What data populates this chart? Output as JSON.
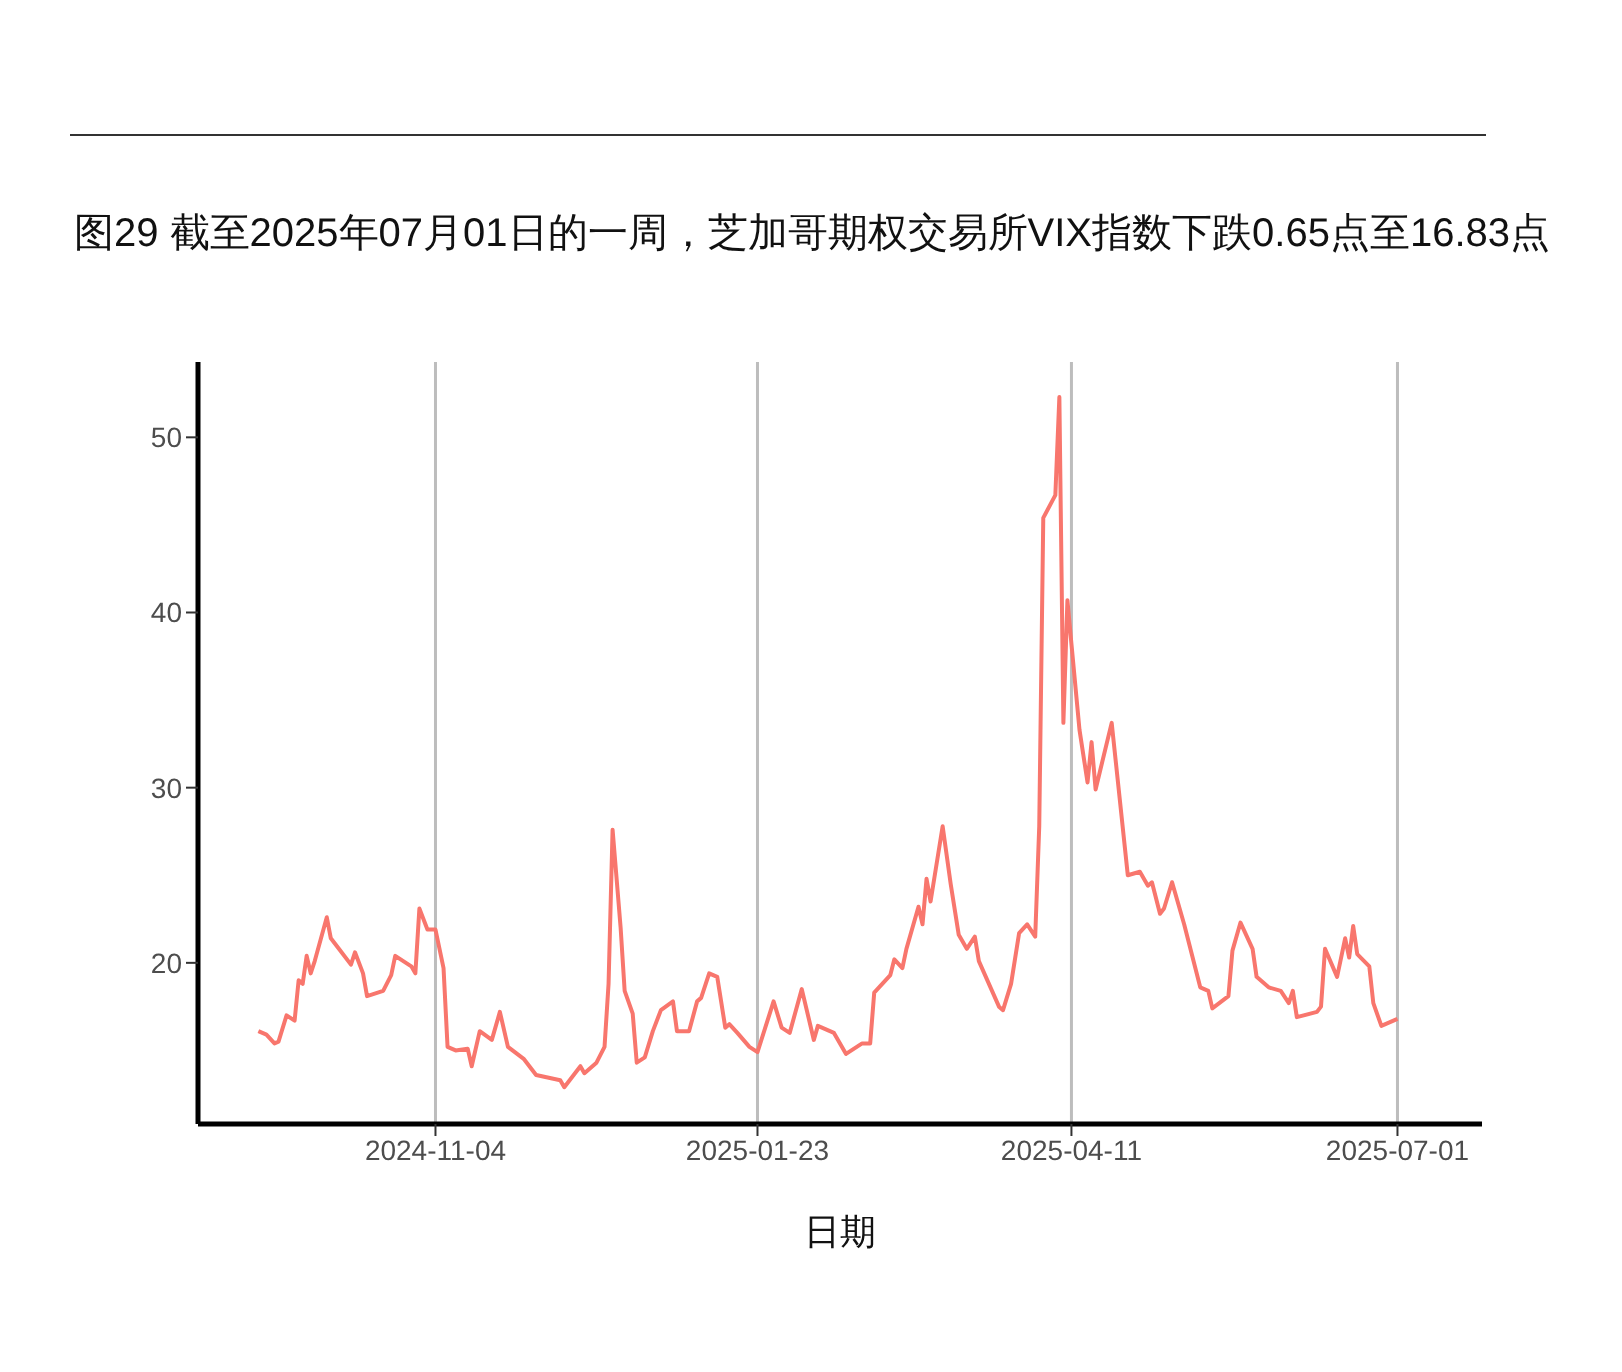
{
  "chart_data": {
    "type": "line",
    "title": "图29  截至2025年07月01日的一周，芝加哥期权交易所VIX指数下跌0.65点至16.83点",
    "xlabel": "日期",
    "x": [
      "2024-09-21",
      "2024-09-23",
      "2024-09-25",
      "2024-09-26",
      "2024-09-28",
      "2024-09-30",
      "2024-10-01",
      "2024-10-02",
      "2024-10-03",
      "2024-10-04",
      "2024-10-05",
      "2024-10-08",
      "2024-10-09",
      "2024-10-11",
      "2024-10-14",
      "2024-10-15",
      "2024-10-17",
      "2024-10-18",
      "2024-10-22",
      "2024-10-24",
      "2024-10-25",
      "2024-10-29",
      "2024-10-30",
      "2024-10-31",
      "2024-11-02",
      "2024-11-04",
      "2024-11-06",
      "2024-11-07",
      "2024-11-09",
      "2024-11-12",
      "2024-11-13",
      "2024-11-15",
      "2024-11-18",
      "2024-11-20",
      "2024-11-22",
      "2024-11-26",
      "2024-11-29",
      "2024-12-05",
      "2024-12-06",
      "2024-12-10",
      "2024-12-11",
      "2024-12-14",
      "2024-12-16",
      "2024-12-17",
      "2024-12-18",
      "2024-12-20",
      "2024-12-21",
      "2024-12-23",
      "2024-12-24",
      "2024-12-26",
      "2024-12-28",
      "2024-12-30",
      "2025-01-02",
      "2025-01-03",
      "2025-01-06",
      "2025-01-08",
      "2025-01-09",
      "2025-01-11",
      "2025-01-13",
      "2025-01-15",
      "2025-01-16",
      "2025-01-18",
      "2025-01-21",
      "2025-01-23",
      "2025-01-27",
      "2025-01-29",
      "2025-01-31",
      "2025-02-03",
      "2025-02-06",
      "2025-02-07",
      "2025-02-11",
      "2025-02-12",
      "2025-02-14",
      "2025-02-18",
      "2025-02-20",
      "2025-02-21",
      "2025-02-25",
      "2025-02-26",
      "2025-02-28",
      "2025-03-01",
      "2025-03-04",
      "2025-03-05",
      "2025-03-06",
      "2025-03-07",
      "2025-03-10",
      "2025-03-12",
      "2025-03-14",
      "2025-03-16",
      "2025-03-18",
      "2025-03-19",
      "2025-03-24",
      "2025-03-25",
      "2025-03-27",
      "2025-03-29",
      "2025-03-31",
      "2025-04-02",
      "2025-04-03",
      "2025-04-04",
      "2025-04-07",
      "2025-04-08",
      "2025-04-09",
      "2025-04-10",
      "2025-04-11",
      "2025-04-13",
      "2025-04-15",
      "2025-04-16",
      "2025-04-17",
      "2025-04-21",
      "2025-04-25",
      "2025-04-28",
      "2025-04-30",
      "2025-05-01",
      "2025-05-03",
      "2025-05-04",
      "2025-05-06",
      "2025-05-09",
      "2025-05-13",
      "2025-05-15",
      "2025-05-16",
      "2025-05-20",
      "2025-05-21",
      "2025-05-23",
      "2025-05-26",
      "2025-05-27",
      "2025-05-30",
      "2025-06-02",
      "2025-06-04",
      "2025-06-05",
      "2025-06-06",
      "2025-06-11",
      "2025-06-12",
      "2025-06-13",
      "2025-06-16",
      "2025-06-18",
      "2025-06-19",
      "2025-06-20",
      "2025-06-21",
      "2025-06-24",
      "2025-06-25",
      "2025-06-27",
      "2025-07-01"
    ],
    "series": [
      {
        "color": "#f8766d",
        "values": [
          16.1,
          15.9,
          15.4,
          15.5,
          17.0,
          16.7,
          19.0,
          18.8,
          20.4,
          19.4,
          20.1,
          22.6,
          21.4,
          20.8,
          19.9,
          20.6,
          19.4,
          18.1,
          18.4,
          19.3,
          20.4,
          19.8,
          19.4,
          23.1,
          21.9,
          21.9,
          19.7,
          15.2,
          15.0,
          15.1,
          14.1,
          16.1,
          15.6,
          17.2,
          15.2,
          14.5,
          13.6,
          13.3,
          12.9,
          14.1,
          13.7,
          14.3,
          15.2,
          18.8,
          27.6,
          22.0,
          18.4,
          17.1,
          14.3,
          14.6,
          16.1,
          17.3,
          17.8,
          16.1,
          16.1,
          17.8,
          18.0,
          19.4,
          19.2,
          16.3,
          16.5,
          16.0,
          15.2,
          14.9,
          17.8,
          16.3,
          16.0,
          18.5,
          15.6,
          16.4,
          16.0,
          15.6,
          14.8,
          15.4,
          15.4,
          18.3,
          19.3,
          20.2,
          19.7,
          20.8,
          23.2,
          22.2,
          24.8,
          23.5,
          27.8,
          24.5,
          21.6,
          20.8,
          21.5,
          20.1,
          17.5,
          17.3,
          18.8,
          21.7,
          22.2,
          21.5,
          27.8,
          45.4,
          46.7,
          52.3,
          33.7,
          40.7,
          38.2,
          33.3,
          30.3,
          32.6,
          29.9,
          33.7,
          25.0,
          25.2,
          24.4,
          24.6,
          22.8,
          23.1,
          24.6,
          22.2,
          18.6,
          18.4,
          17.4,
          18.1,
          20.7,
          22.3,
          20.8,
          19.2,
          18.6,
          18.4,
          17.7,
          18.4,
          16.9,
          17.2,
          17.5,
          20.8,
          19.2,
          21.4,
          20.3,
          22.1,
          20.5,
          19.8,
          17.7,
          16.4,
          16.8
        ]
      }
    ],
    "xlim": [
      "2024-09-06",
      "2025-07-22"
    ],
    "xticks": [
      "2024-11-04",
      "2025-01-23",
      "2025-04-11",
      "2025-07-01"
    ],
    "ylim": [
      10.8,
      54.3
    ],
    "yticks": [
      20,
      30,
      40,
      50
    ],
    "grid": "x",
    "legend": false,
    "marker": "none",
    "line_style": "solid"
  }
}
